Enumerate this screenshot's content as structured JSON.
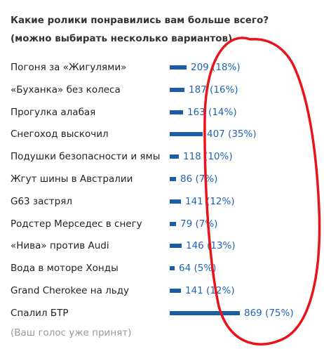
{
  "poll": {
    "title_line1": "Какие ролики понравились вам больше всего?",
    "title_line2": "(можно выбирать несколько вариантов)",
    "bar_color": "#1a5ea8",
    "value_color": "#1f64b3",
    "options": [
      {
        "label": "Погоня за «Жигулями»",
        "value": "209 (18%)",
        "votes": 209,
        "percent": 18
      },
      {
        "label": "«Буханка» без колеса",
        "value": "187 (16%)",
        "votes": 187,
        "percent": 16
      },
      {
        "label": "Прогулка алабая",
        "value": "163 (14%)",
        "votes": 163,
        "percent": 14
      },
      {
        "label": "Снегоход выскочил",
        "value": "407 (35%)",
        "votes": 407,
        "percent": 35
      },
      {
        "label": "Подушки безопасности и ямы",
        "value": "118 (10%)",
        "votes": 118,
        "percent": 10
      },
      {
        "label": "Жгут шины в Австралии",
        "value": "86 (7%)",
        "votes": 86,
        "percent": 7
      },
      {
        "label": "G63 застрял",
        "value": "141 (12%)",
        "votes": 141,
        "percent": 12
      },
      {
        "label": "Родстер Мерседес в снегу",
        "value": "79 (7%)",
        "votes": 79,
        "percent": 7
      },
      {
        "label": "«Нива» против Audi",
        "value": "146 (13%)",
        "votes": 146,
        "percent": 13
      },
      {
        "label": "Вода в моторе Хонды",
        "value": "64 (5%)",
        "votes": 64,
        "percent": 5
      },
      {
        "label": "Grand Cherokee на льду",
        "value": "141 (12%)",
        "votes": 141,
        "percent": 12
      },
      {
        "label": "Спалил БТР",
        "value": "869 (75%)",
        "votes": 869,
        "percent": 75
      }
    ],
    "footer": "(Ваш голос уже принят)"
  },
  "annotation": {
    "shape": "ellipse",
    "color": "#e8141c"
  }
}
